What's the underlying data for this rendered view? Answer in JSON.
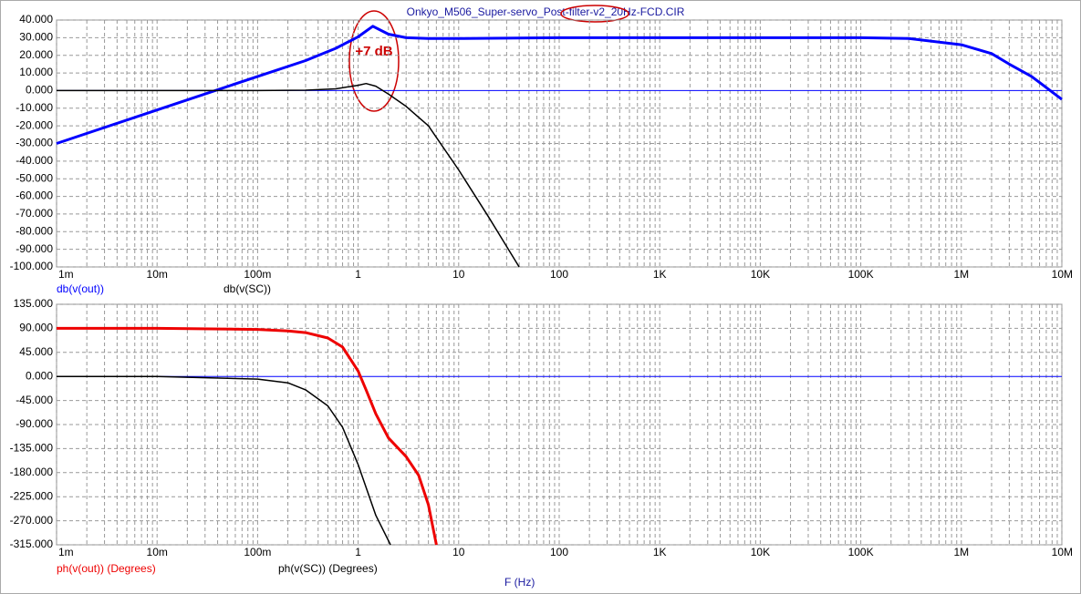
{
  "chart_data": [
    {
      "type": "line",
      "title": "Onkyo_M506_Super-servo_Post-filter-v2_20Hz-FCD.CIR",
      "annotations": [
        "+7 dB"
      ],
      "xscale": "log",
      "xlim": [
        0.001,
        10000000
      ],
      "xticks": [
        {
          "value": 0.001,
          "label": "1m"
        },
        {
          "value": 0.01,
          "label": "10m"
        },
        {
          "value": 0.1,
          "label": "100m"
        },
        1,
        10,
        100,
        {
          "value": 1000,
          "label": "1K"
        },
        {
          "value": 10000,
          "label": "10K"
        },
        {
          "value": 100000,
          "label": "100K"
        },
        {
          "value": 1000000,
          "label": "1M"
        },
        {
          "value": 10000000,
          "label": "10M"
        }
      ],
      "ylim": [
        -100,
        40
      ],
      "yticks": [
        {
          "value": 40,
          "label": "40.000"
        },
        {
          "value": 30,
          "label": "30.000"
        },
        {
          "value": 20,
          "label": "20.000"
        },
        {
          "value": 10,
          "label": "10.000"
        },
        {
          "value": 0,
          "label": "0.000"
        },
        {
          "value": -10,
          "label": "-10.000"
        },
        {
          "value": -20,
          "label": "-20.000"
        },
        {
          "value": -30,
          "label": "-30.000"
        },
        {
          "value": -40,
          "label": "-40.000"
        },
        {
          "value": -50,
          "label": "-50.000"
        },
        {
          "value": -60,
          "label": "-60.000"
        },
        {
          "value": -70,
          "label": "-70.000"
        },
        {
          "value": -80,
          "label": "-80.000"
        },
        {
          "value": -90,
          "label": "-90.000"
        },
        {
          "value": -100,
          "label": "-100.000"
        }
      ],
      "grid": true,
      "zero_line_color": "#0000ff",
      "series": [
        {
          "name": "db(v(out))",
          "color": "#0000ff",
          "x": [
            0.001,
            0.01,
            0.1,
            0.3,
            0.6,
            1,
            1.4,
            2,
            3,
            5,
            10,
            100,
            1000,
            10000,
            100000,
            300000,
            1000000,
            2000000,
            3000000,
            5000000,
            10000000
          ],
          "values": [
            -30,
            -11,
            8,
            17,
            24,
            30.5,
            36.5,
            32,
            30,
            29.5,
            29.5,
            30,
            30,
            30,
            30,
            29.5,
            26,
            21,
            15,
            8,
            -5
          ]
        },
        {
          "name": "db(v(SC))",
          "color": "#000000",
          "x": [
            0.001,
            0.1,
            0.3,
            0.6,
            1,
            1.2,
            1.5,
            2,
            3,
            5,
            10,
            20,
            40
          ],
          "values": [
            0,
            0,
            0.2,
            1,
            3,
            4,
            2.5,
            -2,
            -9,
            -20,
            -45,
            -72,
            -100
          ]
        }
      ]
    },
    {
      "type": "line",
      "x_label": "F (Hz)",
      "xscale": "log",
      "xlim": [
        0.001,
        10000000
      ],
      "xticks": [
        {
          "value": 0.001,
          "label": "1m"
        },
        {
          "value": 0.01,
          "label": "10m"
        },
        {
          "value": 0.1,
          "label": "100m"
        },
        1,
        10,
        100,
        {
          "value": 1000,
          "label": "1K"
        },
        {
          "value": 10000,
          "label": "10K"
        },
        {
          "value": 100000,
          "label": "100K"
        },
        {
          "value": 1000000,
          "label": "1M"
        },
        {
          "value": 10000000,
          "label": "10M"
        }
      ],
      "ylim": [
        -315,
        135
      ],
      "yticks": [
        {
          "value": 135,
          "label": "135.000"
        },
        {
          "value": 90,
          "label": "90.000"
        },
        {
          "value": 45,
          "label": "45.000"
        },
        {
          "value": 0,
          "label": "0.000"
        },
        {
          "value": -45,
          "label": "-45.000"
        },
        {
          "value": -90,
          "label": "-90.000"
        },
        {
          "value": -135,
          "label": "-135.000"
        },
        {
          "value": -180,
          "label": "-180.000"
        },
        {
          "value": -225,
          "label": "-225.000"
        },
        {
          "value": -270,
          "label": "-270.000"
        },
        {
          "value": -315,
          "label": "-315.000"
        }
      ],
      "grid": true,
      "zero_line_color": "#0000ff",
      "series": [
        {
          "name": "ph(v(out)) (Degrees)",
          "color": "#ee0000",
          "x": [
            0.001,
            0.01,
            0.1,
            0.2,
            0.3,
            0.5,
            0.7,
            1,
            1.2,
            1.5,
            2,
            3,
            4,
            5,
            6
          ],
          "values": [
            90,
            90,
            88,
            85,
            82,
            72,
            55,
            10,
            -25,
            -70,
            -115,
            -150,
            -185,
            -240,
            -315
          ]
        },
        {
          "name": "ph(v(SC)) (Degrees)",
          "color": "#000000",
          "x": [
            0.001,
            0.01,
            0.1,
            0.2,
            0.3,
            0.5,
            0.7,
            1,
            1.5,
            2.1
          ],
          "values": [
            0,
            0,
            -5,
            -12,
            -25,
            -55,
            -95,
            -165,
            -260,
            -315
          ]
        }
      ]
    }
  ]
}
